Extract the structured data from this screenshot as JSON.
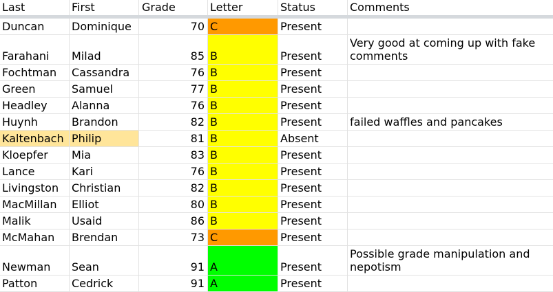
{
  "headers": {
    "last": "Last",
    "first": "First",
    "grade": "Grade",
    "letter": "Letter",
    "status": "Status",
    "comments": "Comments"
  },
  "colors": {
    "grade_c": "#ff9900",
    "grade_b": "#ffff00",
    "grade_a": "#00ff00",
    "selected_row": "#ffe59a",
    "grid": "#e2e2e2"
  },
  "rows": [
    {
      "last": "Duncan",
      "first": "Dominique",
      "grade": "70",
      "letter": "C",
      "status": "Present",
      "comments": ""
    },
    {
      "last": "Farahani",
      "first": "Milad",
      "grade": "85",
      "letter": "B",
      "status": "Present",
      "comments": "Very good at coming up with fake comments"
    },
    {
      "last": "Fochtman",
      "first": "Cassandra",
      "grade": "76",
      "letter": "B",
      "status": "Present",
      "comments": ""
    },
    {
      "last": "Green",
      "first": "Samuel",
      "grade": "77",
      "letter": "B",
      "status": "Present",
      "comments": ""
    },
    {
      "last": "Headley",
      "first": "Alanna",
      "grade": "76",
      "letter": "B",
      "status": "Present",
      "comments": ""
    },
    {
      "last": "Huynh",
      "first": "Brandon",
      "grade": "82",
      "letter": "B",
      "status": "Present",
      "comments": "failed waffles and pancakes"
    },
    {
      "last": "Kaltenbach",
      "first": "Philip",
      "grade": "81",
      "letter": "B",
      "status": "Absent",
      "comments": ""
    },
    {
      "last": "Kloepfer",
      "first": "Mia",
      "grade": "83",
      "letter": "B",
      "status": "Present",
      "comments": ""
    },
    {
      "last": "Lance",
      "first": "Kari",
      "grade": "76",
      "letter": "B",
      "status": "Present",
      "comments": ""
    },
    {
      "last": "Livingston",
      "first": "Christian",
      "grade": "82",
      "letter": "B",
      "status": "Present",
      "comments": ""
    },
    {
      "last": "MacMillan",
      "first": "Elliot",
      "grade": "80",
      "letter": "B",
      "status": "Present",
      "comments": ""
    },
    {
      "last": "Malik",
      "first": "Usaid",
      "grade": "86",
      "letter": "B",
      "status": "Present",
      "comments": ""
    },
    {
      "last": "McMahan",
      "first": "Brendan",
      "grade": "73",
      "letter": "C",
      "status": "Present",
      "comments": ""
    },
    {
      "last": "Newman",
      "first": "Sean",
      "grade": "91",
      "letter": "A",
      "status": "Present",
      "comments": "Possible grade manipulation and nepotism"
    },
    {
      "last": "Patton",
      "first": "Cedrick",
      "grade": "91",
      "letter": "A",
      "status": "Present",
      "comments": ""
    }
  ]
}
